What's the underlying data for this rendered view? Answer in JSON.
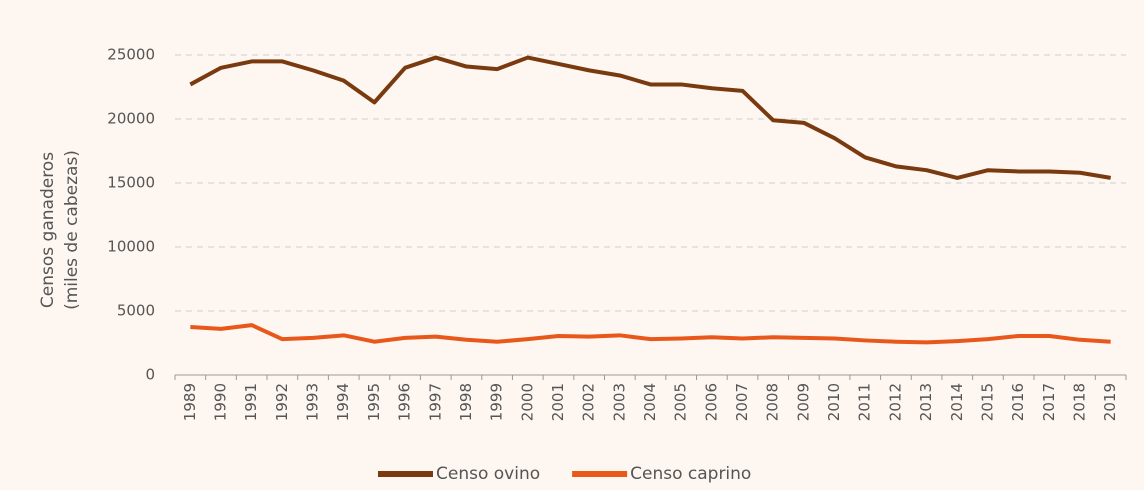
{
  "chart_data": {
    "type": "line",
    "ylabel": [
      "Censos ganaderos",
      "(miles de cabezas)"
    ],
    "categories": [
      "1989",
      "1990",
      "1991",
      "1992",
      "1993",
      "1994",
      "1995",
      "1996",
      "1997",
      "1998",
      "1999",
      "2000",
      "2001",
      "2002",
      "2003",
      "2004",
      "2005",
      "2006",
      "2007",
      "2008",
      "2009",
      "2010",
      "2011",
      "2012",
      "2013",
      "2014",
      "2015",
      "2016",
      "2017",
      "2018",
      "2019"
    ],
    "series": [
      {
        "name": "Censo ovino",
        "color": "#7a3a0f",
        "values": [
          22700,
          24000,
          24500,
          24500,
          23800,
          23000,
          21300,
          24000,
          24800,
          24100,
          23900,
          24800,
          24300,
          23800,
          23400,
          22700,
          22700,
          22400,
          22200,
          19900,
          19700,
          18500,
          17000,
          16300,
          16000,
          15400,
          16000,
          15900,
          15900,
          15800,
          15400
        ]
      },
      {
        "name": "Censo caprino",
        "color": "#e8581a",
        "values": [
          3750,
          3600,
          3900,
          2800,
          2900,
          3100,
          2600,
          2900,
          3000,
          2750,
          2600,
          2800,
          3050,
          3000,
          3100,
          2800,
          2850,
          2950,
          2850,
          2950,
          2900,
          2850,
          2700,
          2600,
          2550,
          2650,
          2800,
          3050,
          3050,
          2750,
          2600
        ]
      }
    ],
    "ylim": [
      0,
      25000
    ],
    "yticks": [
      0,
      5000,
      10000,
      15000,
      20000,
      25000
    ],
    "grid": true,
    "legend": "bottom"
  }
}
